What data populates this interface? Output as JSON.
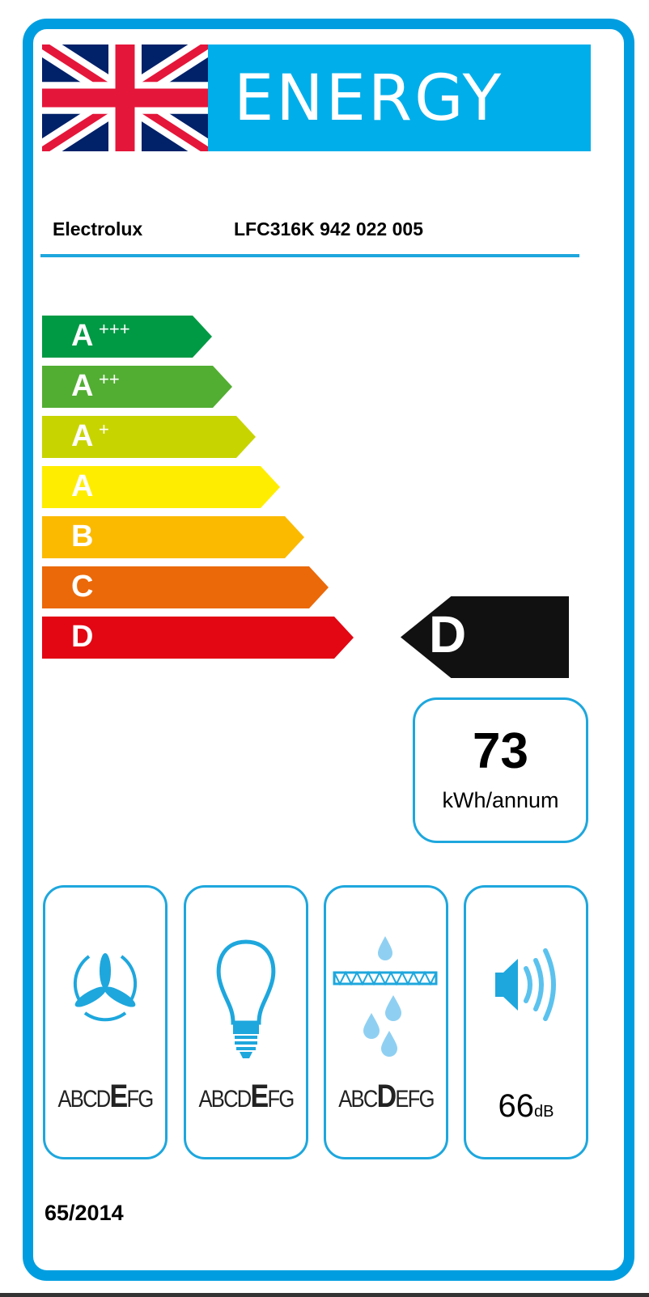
{
  "header": {
    "title": "ENERGY",
    "flag": "uk-flag"
  },
  "supplier": "Electrolux",
  "model": "LFC316K  942 022 005",
  "scale": [
    {
      "letter": "A",
      "plus": "+++",
      "color": "#009a44"
    },
    {
      "letter": "A",
      "plus": "++",
      "color": "#52ae32"
    },
    {
      "letter": "A",
      "plus": "+",
      "color": "#c8d400"
    },
    {
      "letter": "A",
      "plus": "",
      "color": "#ffed00"
    },
    {
      "letter": "B",
      "plus": "",
      "color": "#fbba00"
    },
    {
      "letter": "C",
      "plus": "",
      "color": "#eb6909"
    },
    {
      "letter": "D",
      "plus": "",
      "color": "#e30613"
    }
  ],
  "rating": "D",
  "consumption": {
    "value": "73",
    "unit": "kWh/annum"
  },
  "pictograms": [
    {
      "icon": "fan-icon",
      "pre": "ABCD",
      "class": "E",
      "post": "FG"
    },
    {
      "icon": "lightbulb-icon",
      "pre": "ABCD",
      "class": "E",
      "post": "FG"
    },
    {
      "icon": "grease-filter-icon",
      "pre": "ABC",
      "class": "D",
      "post": "EFG"
    },
    {
      "icon": "speaker-icon",
      "value": "66",
      "unit": "dB"
    }
  ],
  "regulation": "65/2014",
  "colors": {
    "frame": "#009ee0",
    "banner": "#00aeea"
  }
}
